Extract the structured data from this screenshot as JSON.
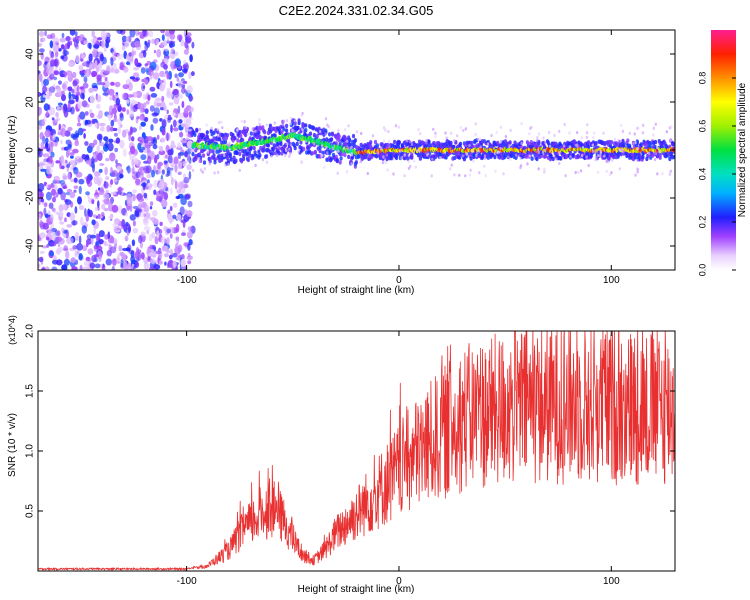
{
  "title": "C2E2.2024.331.02.34.G05",
  "colors": {
    "snr_line": "#e83030",
    "axes": "#000000",
    "background": "#ffffff"
  },
  "chart_data": [
    {
      "type": "heatmap",
      "name": "spectrogram",
      "xlabel": "Height of straight line (km)",
      "ylabel": "Frequency (Hz)",
      "xlim": [
        -170,
        130
      ],
      "ylim": [
        -50,
        50
      ],
      "xticks": [
        -100,
        0,
        100
      ],
      "yticks": [
        -40,
        -20,
        0,
        20,
        40
      ],
      "colorbar": {
        "label": "Normalized spectral amplitude",
        "range": [
          0,
          1
        ],
        "ticks": [
          "0.0",
          "0.2",
          "0.4",
          "0.6",
          "0.8"
        ]
      },
      "description_series": {
        "noise_region_x": [
          -170,
          -97
        ],
        "signal_center_freq_hz": [
          {
            "x": -97,
            "f": 2
          },
          {
            "x": -80,
            "f": 1
          },
          {
            "x": -60,
            "f": 4
          },
          {
            "x": -50,
            "f": 6
          },
          {
            "x": -40,
            "f": 4
          },
          {
            "x": -30,
            "f": 1
          },
          {
            "x": -20,
            "f": -1
          },
          {
            "x": 0,
            "f": 0
          },
          {
            "x": 50,
            "f": 0
          },
          {
            "x": 130,
            "f": 0
          }
        ]
      }
    },
    {
      "type": "line",
      "name": "snr",
      "xlabel": "Height of straight line (km)",
      "ylabel": "SNR (10 * v/v)",
      "scale_label": "(x10^4)",
      "xlim": [
        -170,
        130
      ],
      "ylim": [
        0,
        2.0
      ],
      "xticks": [
        -100,
        0,
        100
      ],
      "yticks": [
        "0.5",
        "1.0",
        "1.5",
        "2.0"
      ],
      "envelope": [
        {
          "x": -170,
          "y": 0.01
        },
        {
          "x": -100,
          "y": 0.01
        },
        {
          "x": -90,
          "y": 0.05
        },
        {
          "x": -80,
          "y": 0.2
        },
        {
          "x": -75,
          "y": 0.35
        },
        {
          "x": -70,
          "y": 0.45
        },
        {
          "x": -65,
          "y": 0.55
        },
        {
          "x": -60,
          "y": 0.6
        },
        {
          "x": -55,
          "y": 0.5
        },
        {
          "x": -50,
          "y": 0.3
        },
        {
          "x": -45,
          "y": 0.15
        },
        {
          "x": -40,
          "y": 0.1
        },
        {
          "x": -35,
          "y": 0.2
        },
        {
          "x": -30,
          "y": 0.35
        },
        {
          "x": -20,
          "y": 0.55
        },
        {
          "x": -10,
          "y": 0.75
        },
        {
          "x": 0,
          "y": 0.95
        },
        {
          "x": 10,
          "y": 1.15
        },
        {
          "x": 20,
          "y": 1.3
        },
        {
          "x": 30,
          "y": 1.45
        },
        {
          "x": 40,
          "y": 1.5
        },
        {
          "x": 60,
          "y": 1.58
        },
        {
          "x": 80,
          "y": 1.6
        },
        {
          "x": 100,
          "y": 1.58
        },
        {
          "x": 130,
          "y": 1.55
        }
      ]
    }
  ]
}
